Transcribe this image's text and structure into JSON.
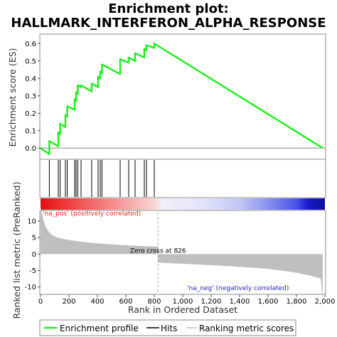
{
  "chart_data": {
    "type": "line",
    "title_line1": "Enrichment plot:",
    "title_line2": "HALLMARK_INTERFERON_ALPHA_RESPONSE",
    "ylabel_top": "Enrichment score (ES)",
    "ylabel_bottom": "Ranked list metric (PreRanked)",
    "xlabel": "Rank in Ordered Dataset",
    "xlim": [
      0,
      2000
    ],
    "es_ylim": [
      -0.06,
      0.65
    ],
    "metric_ylim": [
      -12,
      13
    ],
    "x_ticks": [
      0,
      200,
      400,
      600,
      800,
      1000,
      1200,
      1400,
      1600,
      1800,
      2000
    ],
    "x_tick_labels": [
      "0",
      "200",
      "400",
      "600",
      "800",
      "1,000",
      "1,200",
      "1,400",
      "1,600",
      "1,800",
      "2,000"
    ],
    "es_ticks": [
      0.0,
      0.1,
      0.2,
      0.3,
      0.4,
      0.5,
      0.6
    ],
    "es_tick_labels": [
      "0.0",
      "0.1",
      "0.2",
      "0.3",
      "0.4",
      "0.5",
      "0.6"
    ],
    "metric_ticks": [
      10,
      5,
      0,
      -5,
      -10
    ],
    "metric_tick_labels": [
      "10",
      "5",
      "0",
      "-5",
      "-10"
    ],
    "hits": [
      62,
      125,
      138,
      175,
      188,
      240,
      250,
      262,
      285,
      360,
      405,
      420,
      432,
      560,
      620,
      665,
      730,
      745,
      800
    ],
    "es_curve": {
      "x": [
        0,
        62,
        62,
        125,
        125,
        138,
        138,
        175,
        175,
        188,
        188,
        240,
        240,
        250,
        250,
        262,
        262,
        285,
        285,
        360,
        360,
        405,
        405,
        420,
        420,
        432,
        432,
        560,
        560,
        620,
        620,
        665,
        665,
        730,
        730,
        745,
        745,
        800,
        800,
        1985
      ],
      "y": [
        0.0,
        -0.035,
        0.04,
        0.01,
        0.09,
        0.08,
        0.14,
        0.12,
        0.19,
        0.18,
        0.24,
        0.22,
        0.28,
        0.27,
        0.32,
        0.31,
        0.36,
        0.35,
        0.36,
        0.325,
        0.37,
        0.35,
        0.41,
        0.4,
        0.44,
        0.43,
        0.48,
        0.425,
        0.51,
        0.49,
        0.52,
        0.5,
        0.545,
        0.52,
        0.57,
        0.56,
        0.59,
        0.575,
        0.6,
        0.0
      ]
    },
    "zero_cross_rank": 826,
    "max_rank": 1985,
    "pos_label": "'na_pos' (positively correlated)",
    "neg_label": "'na_neg' (negatively correlated)",
    "zero_cross_label": "Zero cross at 826",
    "colors": {
      "es_line": "#22ee22",
      "hits": "#000000",
      "metric": "#bfbfbf",
      "pos_text": "#ee2222",
      "neg_text": "#2222cc"
    },
    "legend": [
      "Enrichment profile",
      "Hits",
      "Ranking metric scores"
    ],
    "legend_placement": "bottom"
  }
}
